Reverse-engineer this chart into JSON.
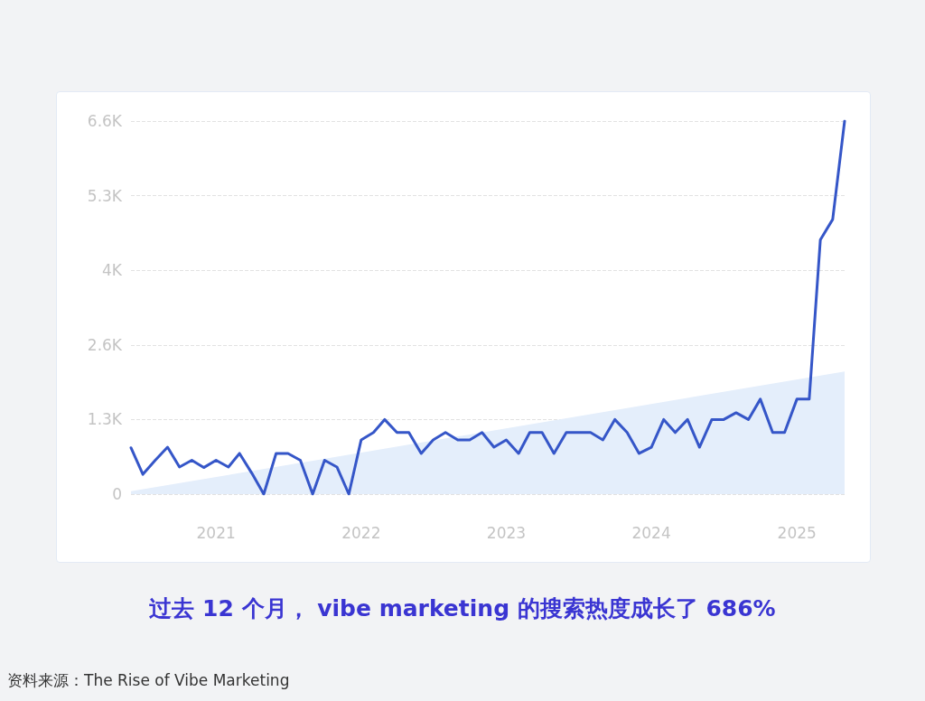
{
  "chart_data": {
    "type": "line",
    "title": "过去 12 个月， vibe marketing 的搜索热度成长了 686%",
    "annotations": [
      "资料来源：The Rise of Vibe Marketing"
    ],
    "x": [
      "2020-06",
      "2020-07",
      "2020-08",
      "2020-09",
      "2020-10",
      "2020-11",
      "2020-12",
      "2021-01",
      "2021-02",
      "2021-03",
      "2021-04",
      "2021-05",
      "2021-06",
      "2021-07",
      "2021-08",
      "2021-09",
      "2021-10",
      "2021-11",
      "2021-12",
      "2022-01",
      "2022-02",
      "2022-03",
      "2022-04",
      "2022-05",
      "2022-06",
      "2022-07",
      "2022-08",
      "2022-09",
      "2022-10",
      "2022-11",
      "2022-12",
      "2023-01",
      "2023-02",
      "2023-03",
      "2023-04",
      "2023-05",
      "2023-06",
      "2023-07",
      "2023-08",
      "2023-09",
      "2023-10",
      "2023-11",
      "2023-12",
      "2024-01",
      "2024-02",
      "2024-03",
      "2024-04",
      "2024-05",
      "2024-06",
      "2024-07",
      "2024-08",
      "2024-09",
      "2024-10",
      "2024-11",
      "2024-12",
      "2025-01",
      "2025-02",
      "2025-03",
      "2025-04",
      "2025-05"
    ],
    "series": [
      {
        "type": "area",
        "color": "#e4eefb",
        "x": [
          "2020-06",
          "2025-05"
        ],
        "values": [
          50,
          2170
        ]
      },
      {
        "color": "#3556c8",
        "values": [
          820,
          350,
          600,
          830,
          480,
          600,
          470,
          600,
          480,
          720,
          370,
          0,
          720,
          720,
          600,
          0,
          600,
          480,
          0,
          960,
          1090,
          1320,
          1090,
          1090,
          720,
          960,
          1090,
          960,
          960,
          1090,
          830,
          960,
          720,
          1090,
          1090,
          720,
          1090,
          1090,
          1090,
          960,
          1320,
          1090,
          720,
          830,
          1320,
          1090,
          1320,
          830,
          1320,
          1320,
          1440,
          1320,
          1680,
          1090,
          1090,
          1680,
          1680,
          4500,
          4860,
          6600
        ]
      }
    ],
    "xlim": [
      "2020-06",
      "2025-05"
    ],
    "xticks": [
      {
        "value": "2021-01",
        "label": "2021"
      },
      {
        "value": "2022-01",
        "label": "2022"
      },
      {
        "value": "2023-01",
        "label": "2023"
      },
      {
        "value": "2024-01",
        "label": "2024"
      },
      {
        "value": "2025-01",
        "label": "2025"
      }
    ],
    "ylim": [
      0,
      6600
    ],
    "yticks": [
      0,
      {
        "value": 1320,
        "label": "1.3K"
      },
      {
        "value": 2640,
        "label": "2.6K"
      },
      {
        "value": 3960,
        "label": "4K"
      },
      {
        "value": 5280,
        "label": "5.3K"
      },
      {
        "value": 6600,
        "label": "6.6K"
      }
    ],
    "grid": "y",
    "line_style": "solid",
    "marker": "none"
  }
}
